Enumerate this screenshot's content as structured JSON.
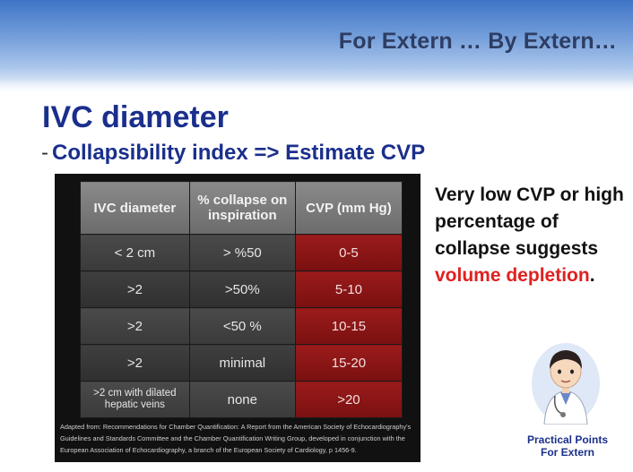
{
  "header": {
    "title": "For Extern … By Extern…"
  },
  "slide": {
    "title": "IVC diameter",
    "subtitle_dash": "-",
    "subtitle": "Collapsibility index => Estimate CVP"
  },
  "table": {
    "headers": [
      "IVC diameter",
      "% collapse on inspiration",
      "CVP (mm Hg)"
    ],
    "rows": [
      [
        "< 2 cm",
        "> %50",
        "0-5"
      ],
      [
        ">2",
        ">50%",
        "5-10"
      ],
      [
        ">2",
        "<50 %",
        "10-15"
      ],
      [
        ">2",
        "minimal",
        "15-20"
      ],
      [
        ">2 cm with dilated hepatic veins",
        "none",
        ">20"
      ]
    ],
    "citation": "Adapted from: Recommendations for Chamber Quantification: A Report from the American Society of Echocardiography's Guidelines and Standards Committee and the Chamber Quantification Writing Group, developed in conjunction with the European Association of Echocardiography, a branch of the European Society of Cardiology, p 1456-9."
  },
  "note": {
    "text": "Very low CVP or high percentage of collapse suggests",
    "highlight": "volume depletion",
    "end": "."
  },
  "footer": {
    "line1": "Practical Points",
    "line2": "For Extern"
  },
  "colors": {
    "title_blue": "#1a2f8c",
    "highlight_red": "#e02020",
    "cell_red": "#8b1515"
  },
  "icons": {
    "mascot": "doctor-mascot-icon"
  }
}
